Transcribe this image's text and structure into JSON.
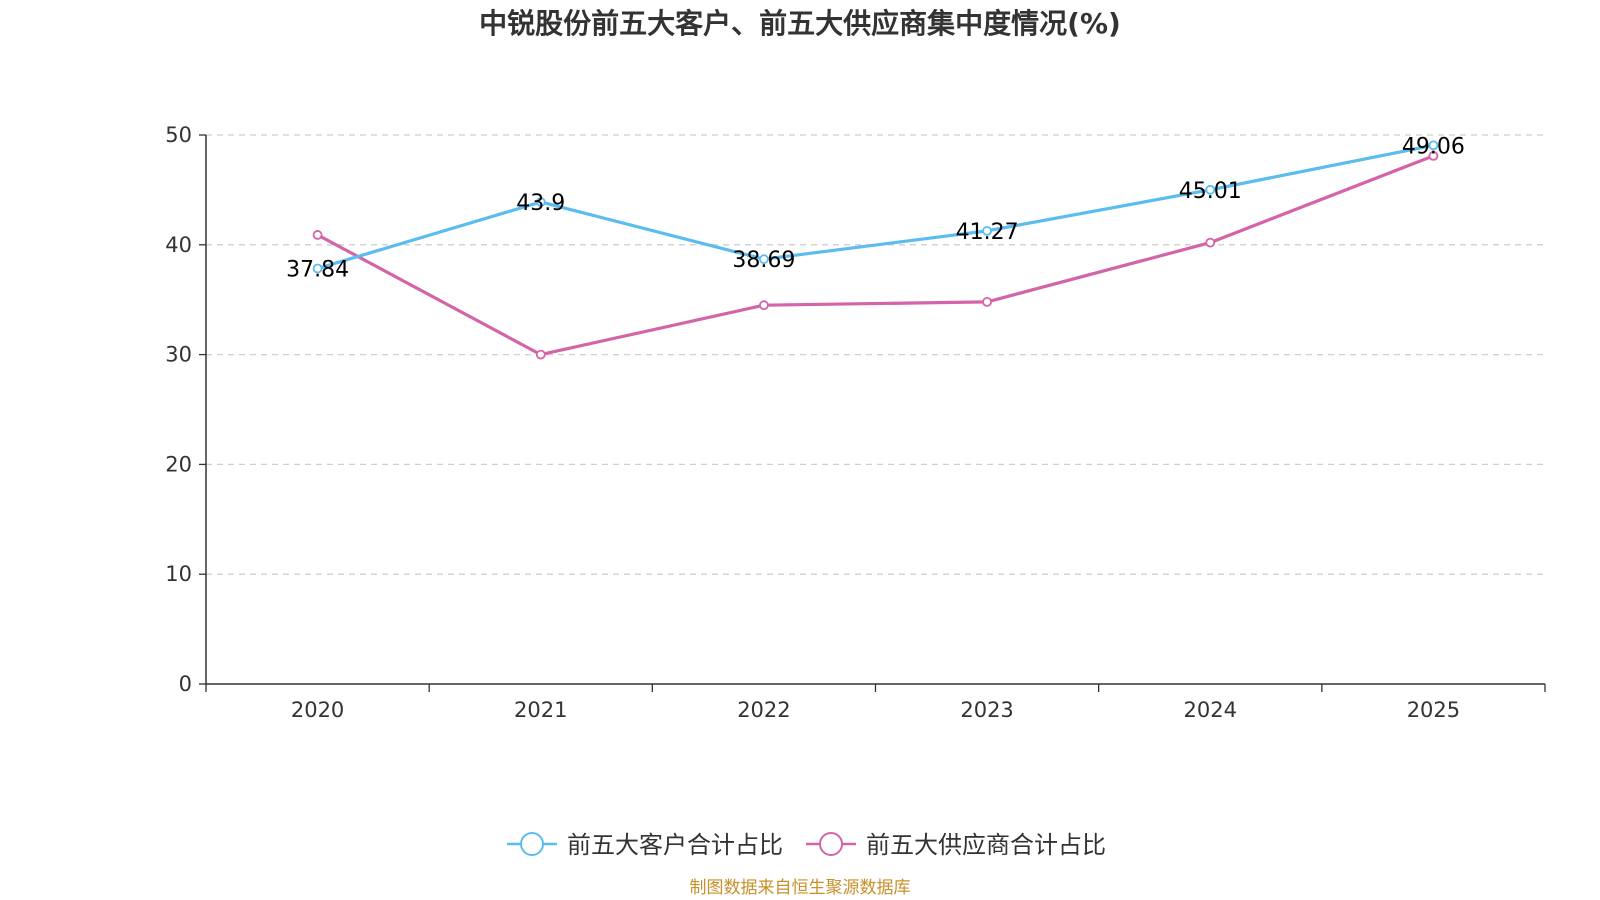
{
  "chart_data": {
    "type": "line",
    "title": "中锐股份前五大客户、前五大供应商集中度情况(%)",
    "categories": [
      "2020",
      "2021",
      "2022",
      "2023",
      "2024",
      "2025"
    ],
    "ylim": [
      0,
      50
    ],
    "yticks": [
      0,
      10,
      20,
      30,
      40,
      50
    ],
    "grid": true,
    "legend_position": "bottom",
    "series": [
      {
        "name": "前五大客户合计占比",
        "color": "#5bbcf0",
        "values": [
          37.84,
          43.9,
          38.69,
          41.27,
          45.01,
          49.06
        ],
        "data_labels": [
          "37.84",
          "43.9",
          "38.69",
          "41.27",
          "45.01",
          "49.06"
        ]
      },
      {
        "name": "前五大供应商合计占比",
        "color": "#d464a8",
        "values": [
          40.9,
          30.0,
          34.5,
          34.8,
          40.2,
          48.1
        ]
      }
    ]
  },
  "source_note": "制图数据来自恒生聚源数据库"
}
